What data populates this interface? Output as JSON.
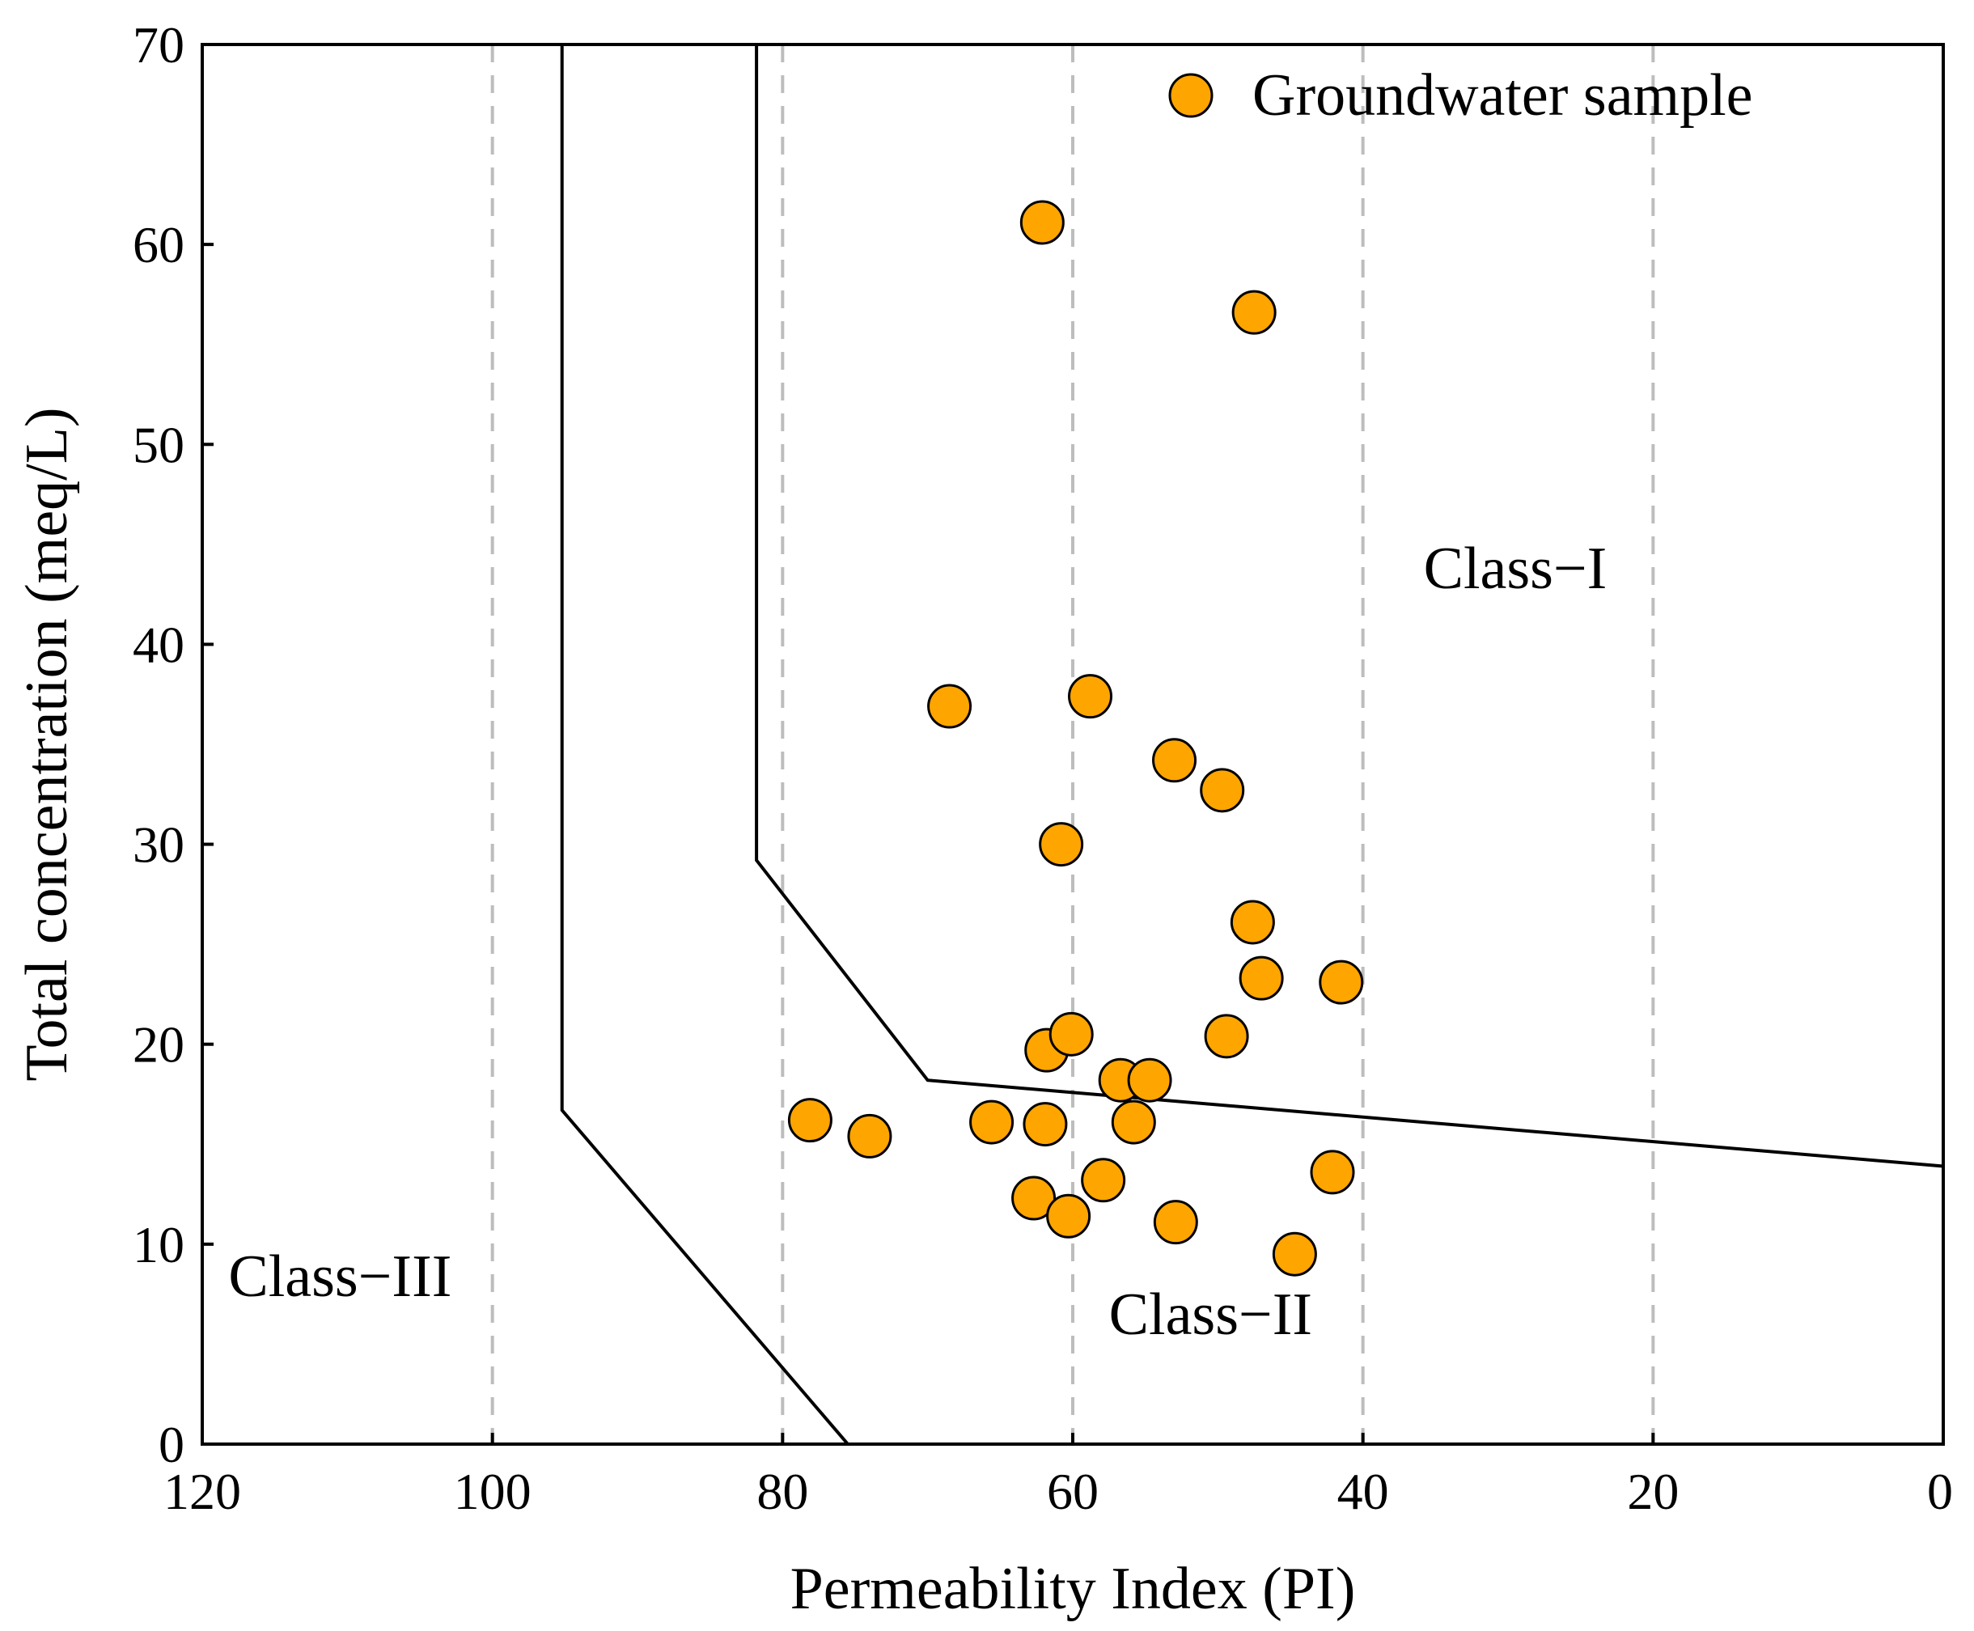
{
  "chart_data": {
    "type": "scatter",
    "title": "",
    "xlabel": "Permeability Index (PI)",
    "ylabel": "Total concentration (meq/L)",
    "xlim": [
      120,
      0
    ],
    "ylim": [
      0,
      70
    ],
    "x_ticks": [
      "120",
      "100",
      "80",
      "60",
      "40",
      "20",
      "0"
    ],
    "y_ticks": [
      "0",
      "10",
      "20",
      "30",
      "40",
      "50",
      "60",
      "70"
    ],
    "x_tick_values": [
      120,
      100,
      80,
      60,
      40,
      20,
      0
    ],
    "y_tick_values": [
      0,
      10,
      20,
      30,
      40,
      50,
      60,
      70
    ],
    "vertical_gridlines_at": [
      100,
      80,
      60,
      40,
      20
    ],
    "grid_style": "dashed",
    "legend": {
      "label": "Groundwater sample",
      "position": "top-right"
    },
    "marker_color": "#FFA500",
    "marker_edge_color": "#000000",
    "boundaries": [
      {
        "name": "boundary-class-II-III",
        "points": [
          [
            95.2,
            70
          ],
          [
            95.2,
            16.7
          ],
          [
            75.5,
            0
          ]
        ]
      },
      {
        "name": "boundary-class-I-II",
        "points": [
          [
            81.8,
            70
          ],
          [
            81.8,
            29.2
          ],
          [
            70.0,
            18.2
          ],
          [
            0,
            13.9
          ]
        ]
      }
    ],
    "region_labels": [
      {
        "text": "Class−I",
        "x": 29.5,
        "y": 42.8
      },
      {
        "text": "Class−II",
        "x": 50.5,
        "y": 5.5
      },
      {
        "text": "Class−III",
        "x": 110.5,
        "y": 7.4
      }
    ],
    "series": [
      {
        "name": "Groundwater sample",
        "points": [
          [
            62.1,
            61.1
          ],
          [
            47.5,
            56.6
          ],
          [
            68.5,
            36.9
          ],
          [
            58.8,
            37.4
          ],
          [
            53.0,
            34.2
          ],
          [
            49.7,
            32.7
          ],
          [
            60.8,
            30.0
          ],
          [
            47.6,
            26.1
          ],
          [
            47.0,
            23.3
          ],
          [
            41.5,
            23.1
          ],
          [
            61.8,
            19.7
          ],
          [
            60.1,
            20.5
          ],
          [
            49.4,
            20.4
          ],
          [
            56.7,
            18.2
          ],
          [
            54.7,
            18.2
          ],
          [
            78.1,
            16.2
          ],
          [
            74.0,
            15.4
          ],
          [
            65.6,
            16.1
          ],
          [
            61.9,
            16.0
          ],
          [
            55.8,
            16.1
          ],
          [
            62.7,
            12.3
          ],
          [
            60.3,
            11.4
          ],
          [
            57.9,
            13.2
          ],
          [
            52.9,
            11.1
          ],
          [
            42.1,
            13.6
          ],
          [
            44.7,
            9.5
          ]
        ]
      }
    ]
  }
}
